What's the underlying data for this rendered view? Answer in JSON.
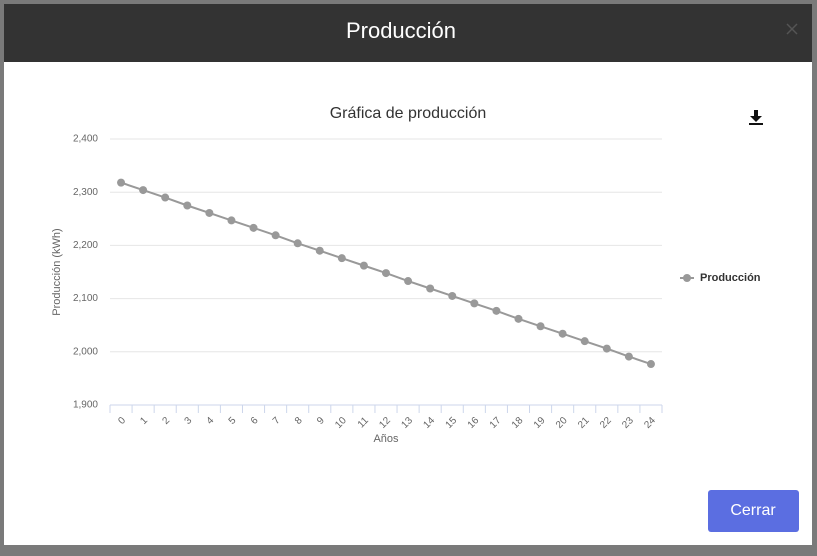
{
  "modal": {
    "title": "Producción",
    "button": "Cerrar"
  },
  "chart_data": {
    "type": "line",
    "title": "Gráfica de producción",
    "x_label": "Años",
    "y_label": "Producción (kWh)",
    "categories": [
      "0",
      "1",
      "2",
      "3",
      "4",
      "5",
      "6",
      "7",
      "8",
      "9",
      "10",
      "11",
      "12",
      "13",
      "14",
      "15",
      "16",
      "17",
      "18",
      "19",
      "20",
      "21",
      "22",
      "23",
      "24"
    ],
    "series": [
      {
        "name": "Producción",
        "color": "#999999",
        "values": [
          2318,
          2304,
          2290,
          2275,
          2261,
          2247,
          2233,
          2219,
          2204,
          2190,
          2176,
          2162,
          2148,
          2133,
          2119,
          2105,
          2091,
          2077,
          2062,
          2048,
          2034,
          2020,
          2006,
          1991,
          1977
        ]
      }
    ],
    "ylim": [
      1900,
      2400
    ],
    "yticks": [
      {
        "value": 1900,
        "label": "1,900"
      },
      {
        "value": 2000,
        "label": "2,000"
      },
      {
        "value": 2100,
        "label": "2,100"
      },
      {
        "value": 2200,
        "label": "2,200"
      },
      {
        "value": 2300,
        "label": "2,300"
      },
      {
        "value": 2400,
        "label": "2,400"
      }
    ],
    "grid": true,
    "legend": "right"
  }
}
